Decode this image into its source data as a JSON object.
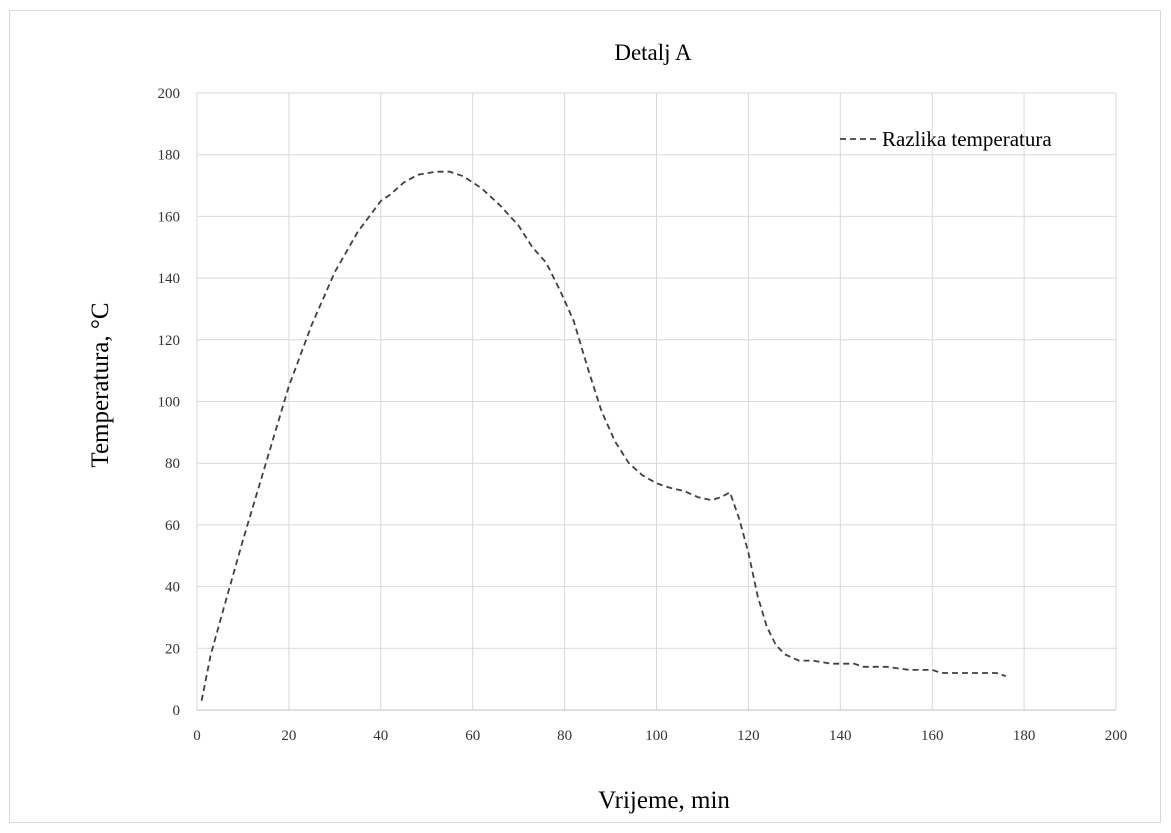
{
  "chart_data": {
    "type": "line",
    "title": "Detalj A",
    "xlabel": "Vrijeme, min",
    "ylabel": "Temperatura, °C",
    "xlim": [
      0,
      200
    ],
    "ylim": [
      0,
      200
    ],
    "x_ticks": [
      "0",
      "20",
      "40",
      "60",
      "80",
      "100",
      "120",
      "140",
      "160",
      "180",
      "200"
    ],
    "y_ticks": [
      "0",
      "20",
      "40",
      "60",
      "80",
      "100",
      "120",
      "140",
      "160",
      "180",
      "200"
    ],
    "grid": true,
    "legend_position": "top-right",
    "series": [
      {
        "name": "Razlika temperatura",
        "line_style": "dashed",
        "color": "#404040",
        "x": [
          1,
          3,
          6,
          10,
          15,
          20,
          25,
          30,
          35,
          40,
          42,
          45,
          48,
          52,
          55,
          58,
          62,
          66,
          70,
          73,
          76,
          79,
          82,
          85,
          88,
          91,
          94,
          97,
          100,
          103,
          106,
          109,
          112,
          114,
          116,
          118,
          120,
          122,
          124,
          126,
          128,
          131,
          134,
          138,
          142,
          143,
          145,
          150,
          155,
          160,
          162,
          165,
          170,
          174,
          176
        ],
        "y": [
          3,
          18,
          34,
          55,
          80,
          105,
          125,
          142,
          155,
          165,
          167,
          171,
          173.5,
          174.5,
          174.5,
          173,
          169,
          163.5,
          157,
          150,
          145,
          136,
          126,
          111,
          97,
          87,
          80,
          76,
          73.5,
          72,
          71,
          69,
          68,
          69,
          70.5,
          62,
          51,
          37,
          27,
          21,
          18,
          16,
          16,
          15,
          15,
          15,
          14,
          14,
          13,
          13,
          12,
          12,
          12,
          12,
          11
        ]
      }
    ]
  }
}
